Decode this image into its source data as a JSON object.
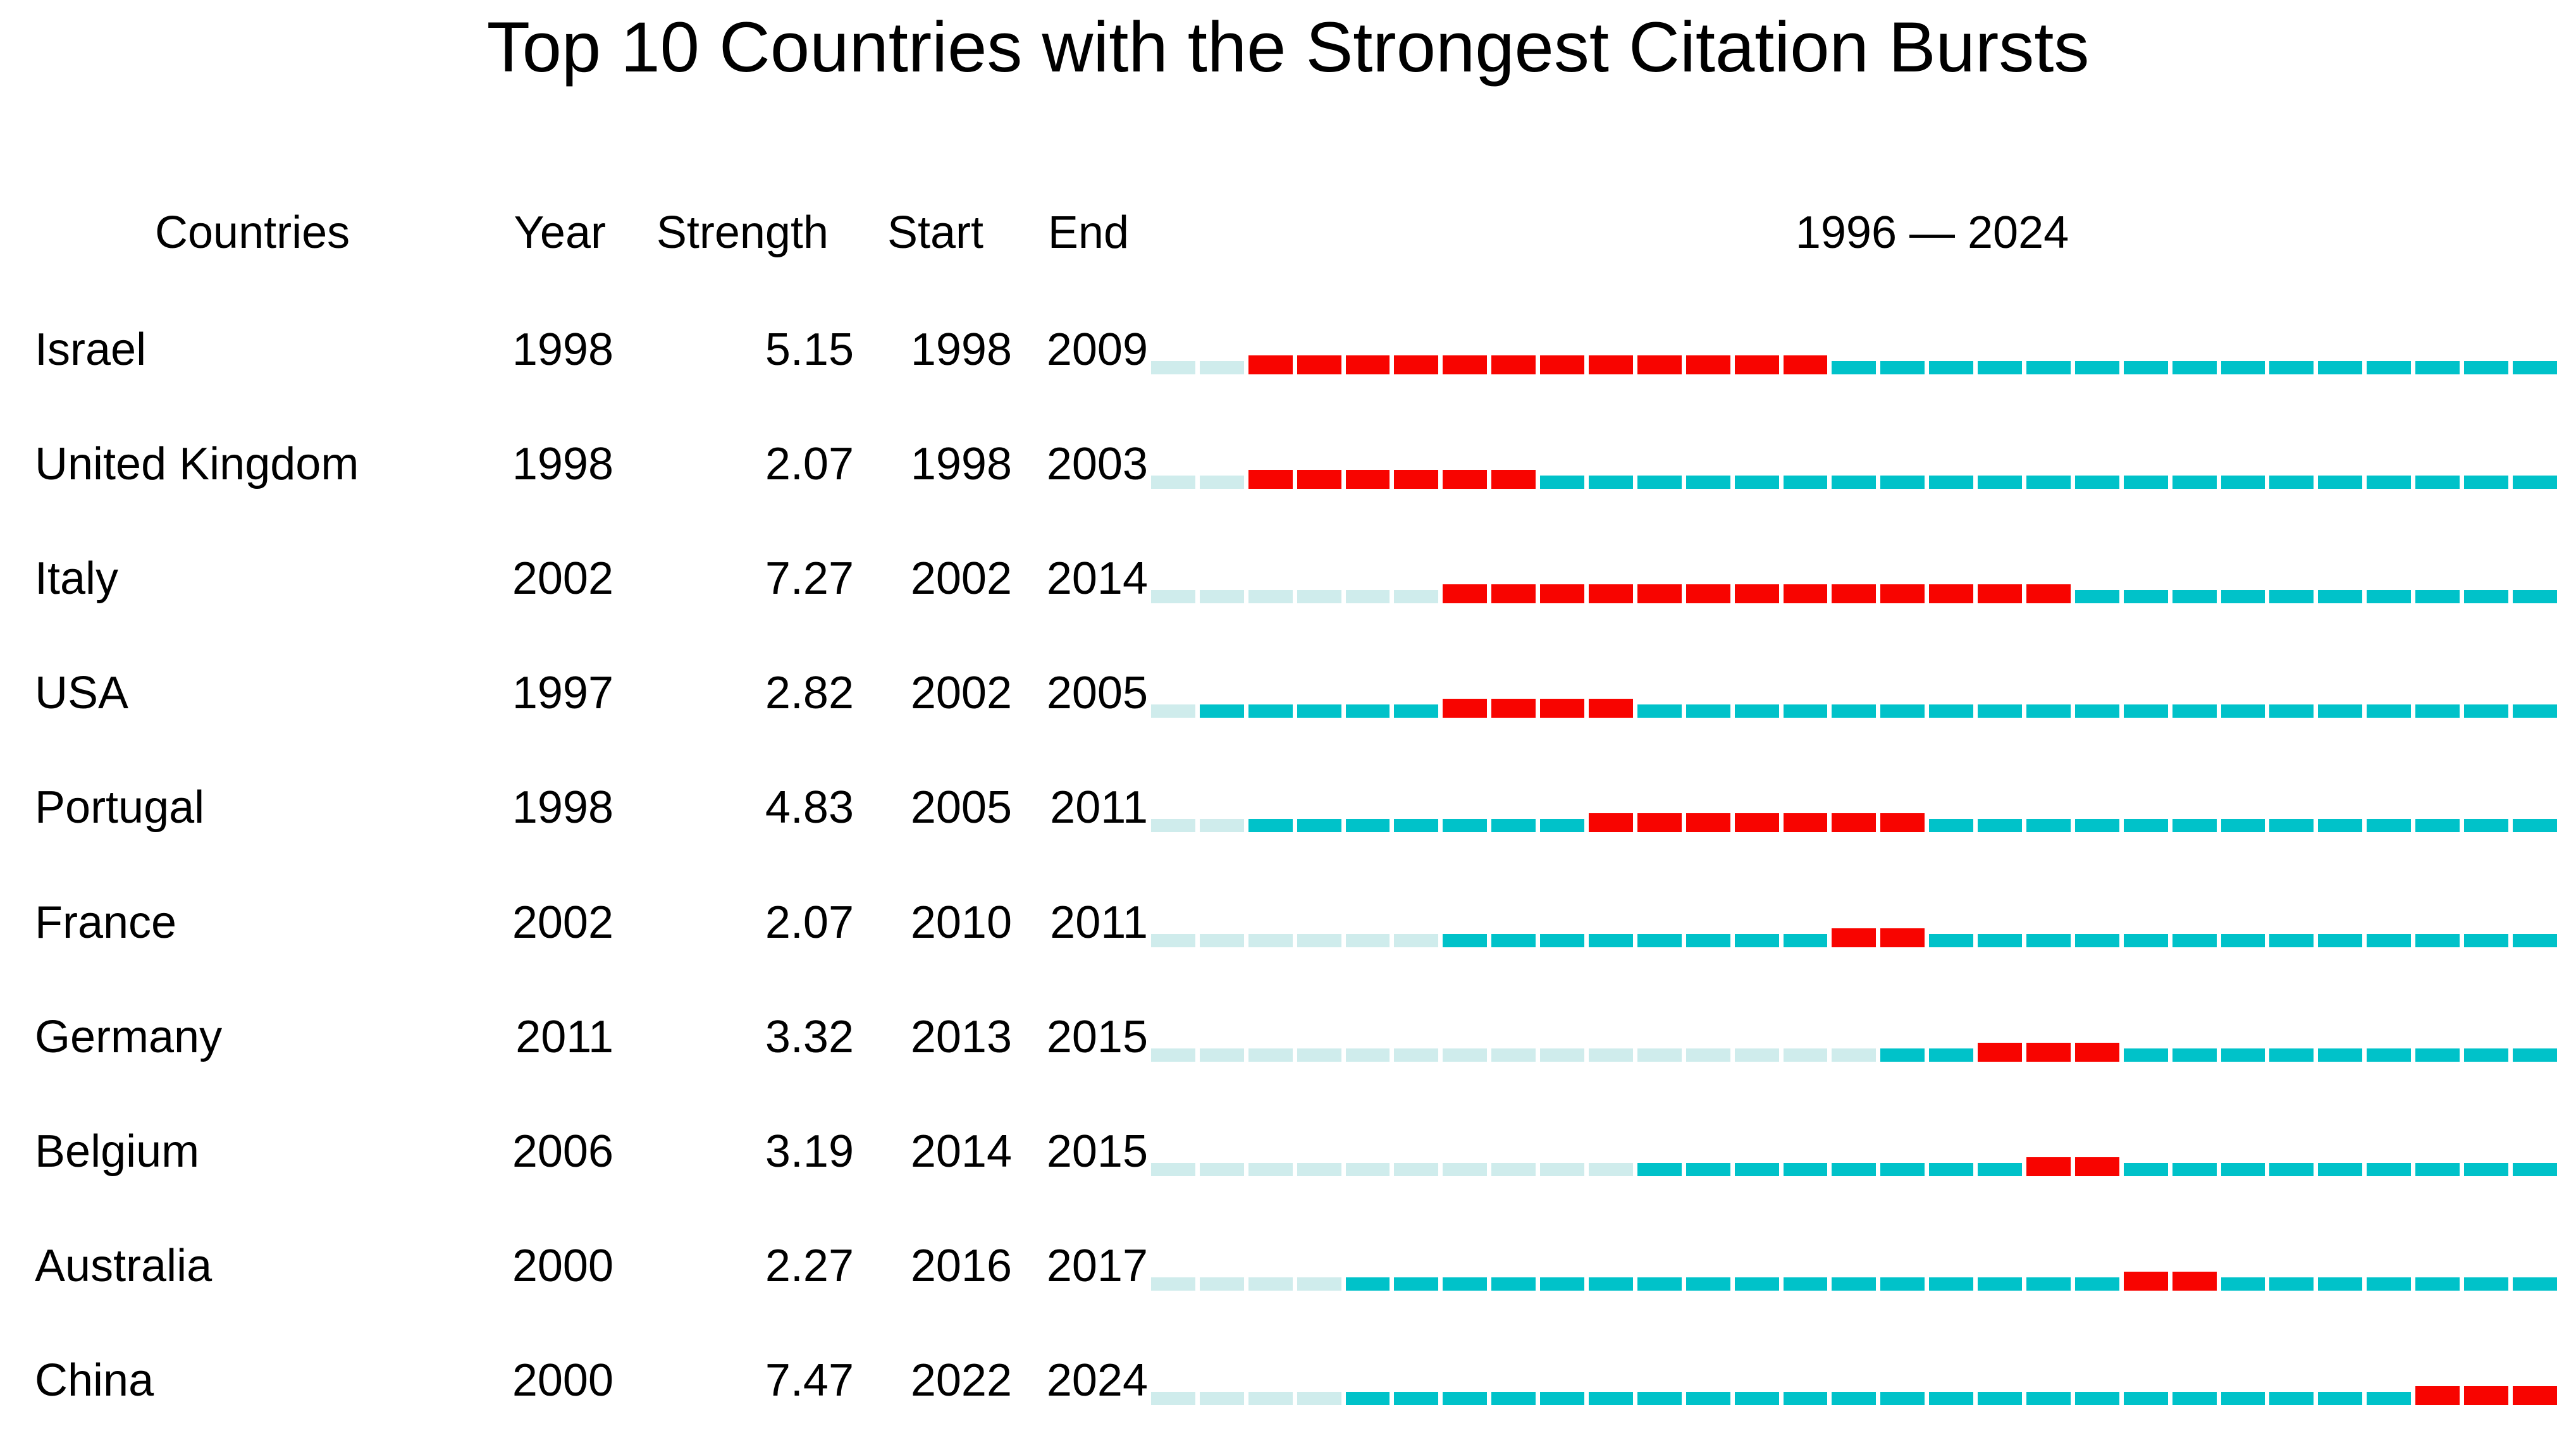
{
  "title": "Top 10 Countries with the Strongest Citation Bursts",
  "header": {
    "countries": "Countries",
    "year": "Year",
    "strength": "Strength",
    "start": "Start",
    "end": "End",
    "range": "1996 — 2024"
  },
  "chart_data": {
    "type": "table",
    "title": "Top 10 Countries with the Strongest Citation Bursts",
    "columns": [
      "Countries",
      "Year",
      "Strength",
      "Start",
      "End"
    ],
    "timeline": {
      "start_year": 1996,
      "end_year": 2024,
      "label": "1996 — 2024",
      "years_total": 29
    },
    "colors": {
      "pre": "#cfecec",
      "active": "#00c2c9",
      "burst": "#f80400"
    },
    "rows": [
      {
        "country": "Israel",
        "year": 1998,
        "strength": "5.15",
        "start": 1998,
        "end": 2009
      },
      {
        "country": "United Kingdom",
        "year": 1998,
        "strength": "2.07",
        "start": 1998,
        "end": 2003
      },
      {
        "country": "Italy",
        "year": 2002,
        "strength": "7.27",
        "start": 2002,
        "end": 2014
      },
      {
        "country": "USA",
        "year": 1997,
        "strength": "2.82",
        "start": 2002,
        "end": 2005
      },
      {
        "country": "Portugal",
        "year": 1998,
        "strength": "4.83",
        "start": 2005,
        "end": 2011
      },
      {
        "country": "France",
        "year": 2002,
        "strength": "2.07",
        "start": 2010,
        "end": 2011
      },
      {
        "country": "Germany",
        "year": 2011,
        "strength": "3.32",
        "start": 2013,
        "end": 2015
      },
      {
        "country": "Belgium",
        "year": 2006,
        "strength": "3.19",
        "start": 2014,
        "end": 2015
      },
      {
        "country": "Australia",
        "year": 2000,
        "strength": "2.27",
        "start": 2016,
        "end": 2017
      },
      {
        "country": "China",
        "year": 2000,
        "strength": "7.47",
        "start": 2022,
        "end": 2024
      }
    ]
  }
}
